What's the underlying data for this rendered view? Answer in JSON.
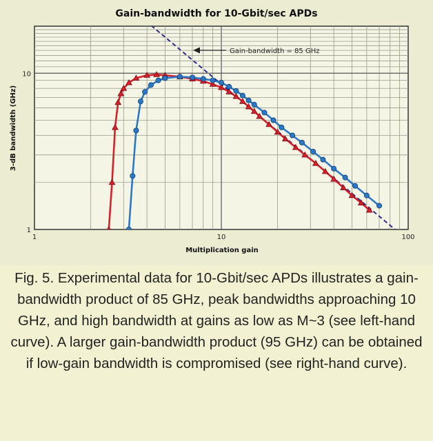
{
  "chart_data": {
    "type": "line",
    "title": "Gain-bandwidth for 10-Gbit/sec APDs",
    "xlabel": "Multiplication gain",
    "ylabel": "3-dB bandwidth (GHz)",
    "x_scale": "log",
    "y_scale": "log",
    "xlim": [
      1,
      100
    ],
    "ylim": [
      1,
      20
    ],
    "grid": true,
    "x_tick_labels": [
      "1",
      "10",
      "100"
    ],
    "y_tick_labels": [
      "1",
      "10"
    ],
    "annotation": "Gain-bandwidth = 85 GHz",
    "reference_line": {
      "gain_bandwidth_ghz": 85,
      "x": [
        3.7,
        100
      ],
      "y": [
        23,
        0.85
      ]
    },
    "series": [
      {
        "marker": "triangle",
        "color": "#d8202a",
        "x": [
          2.5,
          2.6,
          2.7,
          2.8,
          2.9,
          3.0,
          3.2,
          3.5,
          4.0,
          4.5,
          5.0,
          6.0,
          7.0,
          8.0,
          9.0,
          10.0,
          11.0,
          12.0,
          13.0,
          14.0,
          15.0,
          16.0,
          18.0,
          20.0,
          22.0,
          25.0,
          28.0,
          32.0,
          36.0,
          40.0,
          45.0,
          50.0,
          56.0,
          62.0
        ],
        "y": [
          1.0,
          2.0,
          4.5,
          6.5,
          7.4,
          8.0,
          8.7,
          9.3,
          9.7,
          9.8,
          9.7,
          9.5,
          9.2,
          8.9,
          8.5,
          8.1,
          7.6,
          7.1,
          6.6,
          6.1,
          5.7,
          5.3,
          4.7,
          4.2,
          3.8,
          3.35,
          3.0,
          2.65,
          2.35,
          2.1,
          1.85,
          1.65,
          1.48,
          1.33
        ]
      },
      {
        "marker": "circle",
        "color": "#2a78c8",
        "x": [
          3.2,
          3.35,
          3.5,
          3.7,
          3.9,
          4.2,
          4.6,
          5.0,
          6.0,
          7.0,
          8.0,
          9.0,
          10.0,
          11.0,
          12.0,
          13.0,
          14.0,
          15.0,
          17.0,
          19.0,
          21.0,
          24.0,
          27.0,
          31.0,
          35.0,
          40.0,
          46.0,
          52.0,
          60.0,
          70.0
        ],
        "y": [
          1.0,
          2.2,
          4.3,
          6.6,
          7.6,
          8.4,
          9.0,
          9.3,
          9.5,
          9.4,
          9.2,
          9.0,
          8.7,
          8.2,
          7.7,
          7.2,
          6.7,
          6.3,
          5.6,
          5.0,
          4.5,
          4.0,
          3.6,
          3.15,
          2.8,
          2.45,
          2.15,
          1.9,
          1.65,
          1.42
        ]
      }
    ]
  },
  "caption": "Fig. 5. Experimental data for 10-Gbit/sec APDs illustrates a gain-bandwidth product of 85 GHz, peak bandwidths approaching 10 GHz, and high bandwidth at gains as low as M~3 (see left-hand curve). A larger gain-bandwidth product (95 GHz) can be obtained if low-gain bandwidth is compromised (see right-hand curve)."
}
